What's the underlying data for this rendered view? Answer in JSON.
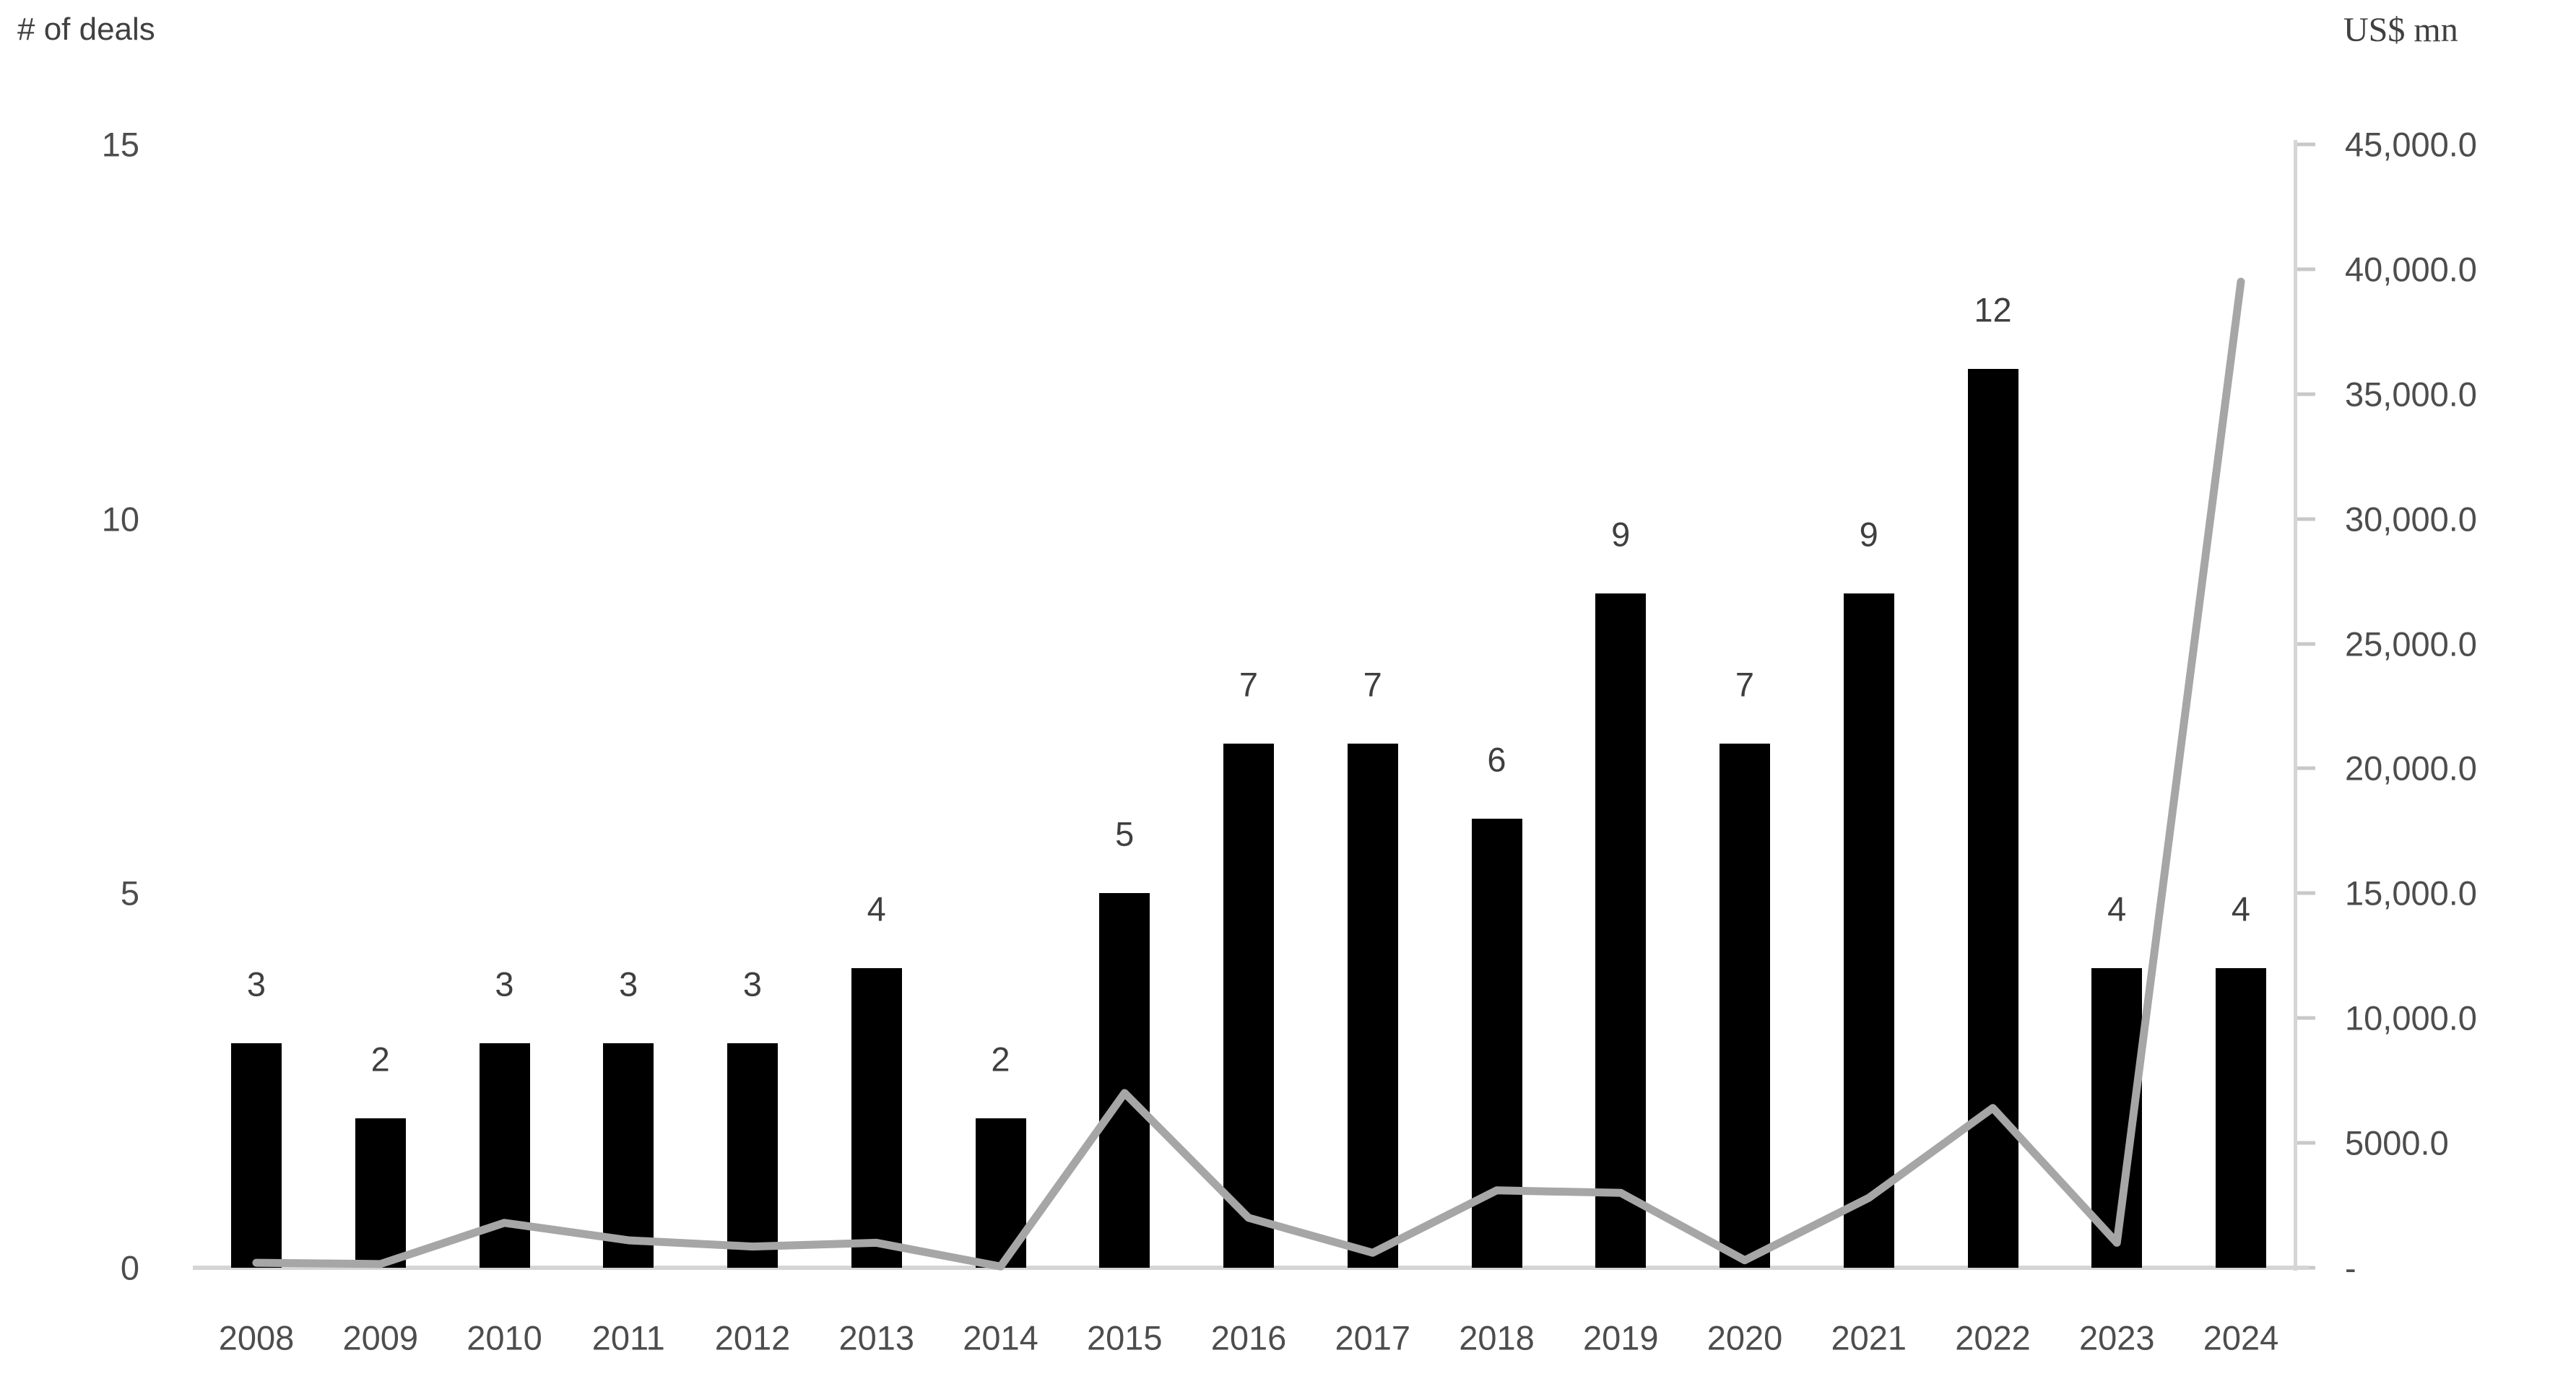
{
  "chart_data": {
    "type": "combo",
    "categories": [
      "2008",
      "2009",
      "2010",
      "2011",
      "2012",
      "2013",
      "2014",
      "2015",
      "2016",
      "2017",
      "2018",
      "2019",
      "2020",
      "2021",
      "2022",
      "2023",
      "2024"
    ],
    "series": [
      {
        "name": "# of deals",
        "type": "bar",
        "axis": "left",
        "color": "#000000",
        "values": [
          3,
          2,
          3,
          3,
          3,
          4,
          2,
          5,
          7,
          7,
          6,
          9,
          7,
          9,
          12,
          4,
          4
        ],
        "data_labels": [
          "3",
          "2",
          "3",
          "3",
          "3",
          "4",
          "2",
          "5",
          "7",
          "7",
          "6",
          "9",
          "7",
          "9",
          "12",
          "4",
          "4"
        ]
      },
      {
        "name": "US$ mn",
        "type": "line",
        "axis": "right",
        "color": "#a6a6a6",
        "values": [
          200,
          150,
          1800,
          1100,
          850,
          1000,
          50,
          7000,
          2000,
          600,
          3100,
          3000,
          300,
          2800,
          6400,
          1000,
          39500
        ]
      }
    ],
    "left_axis": {
      "title": "# of deals",
      "range": [
        0,
        15
      ],
      "ticks": [
        {
          "label": "15",
          "value": 15
        },
        {
          "label": "10",
          "value": 10
        },
        {
          "label": "5",
          "value": 5
        },
        {
          "label": "0",
          "value": 0
        }
      ]
    },
    "right_axis": {
      "title": "US$ mn",
      "range": [
        0,
        45000
      ],
      "ticks": [
        {
          "label": "45,000.0",
          "value": 45000
        },
        {
          "label": "40,000.0",
          "value": 40000
        },
        {
          "label": "35,000.0",
          "value": 35000
        },
        {
          "label": "30,000.0",
          "value": 30000
        },
        {
          "label": "25,000.0",
          "value": 25000
        },
        {
          "label": "20,000.0",
          "value": 20000
        },
        {
          "label": "15,000.0",
          "value": 15000
        },
        {
          "label": "10,000.0",
          "value": 10000
        },
        {
          "label": "5000.0",
          "value": 5000
        },
        {
          "label": "-",
          "value": 0
        }
      ]
    },
    "legend": "none",
    "gridlines": "none",
    "background": "#ffffff"
  }
}
